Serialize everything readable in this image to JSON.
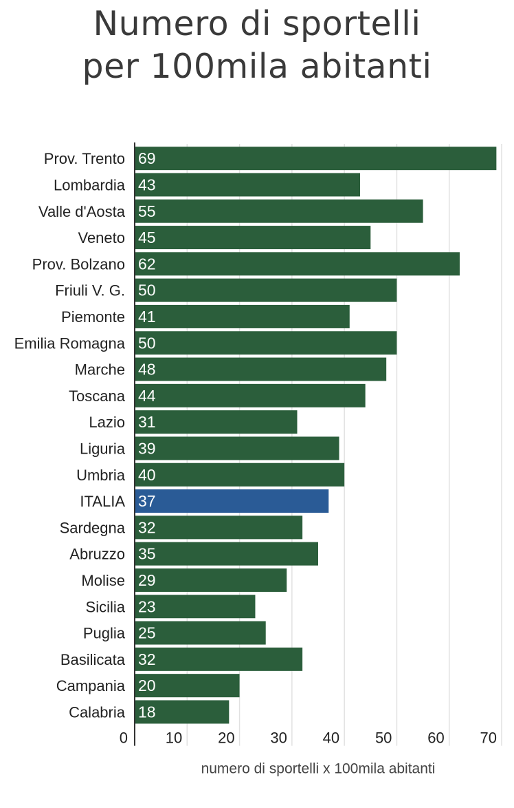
{
  "title_line1": "Numero di sportelli",
  "title_line2": "per 100mila abitanti",
  "chart_data": {
    "type": "bar",
    "orientation": "horizontal",
    "title": "Numero di sportelli per 100mila abitanti",
    "xlabel": "numero di sportelli x 100mila abitanti",
    "ylabel": "",
    "categories": [
      "Prov. Trento",
      "Lombardia",
      "Valle d'Aosta",
      "Veneto",
      "Prov. Bolzano",
      "Friuli V. G.",
      "Piemonte",
      "Emilia Romagna",
      "Marche",
      "Toscana",
      "Lazio",
      "Liguria",
      "Umbria",
      "ITALIA",
      "Sardegna",
      "Abruzzo",
      "Molise",
      "Sicilia",
      "Puglia",
      "Basilicata",
      "Campania",
      "Calabria"
    ],
    "values": [
      69,
      43,
      55,
      45,
      62,
      50,
      41,
      50,
      48,
      44,
      31,
      39,
      40,
      37,
      32,
      35,
      29,
      23,
      25,
      32,
      20,
      18
    ],
    "highlight_category": "ITALIA",
    "xlim": [
      0,
      70
    ],
    "xticks": [
      "0",
      "10",
      "20",
      "30",
      "40",
      "50",
      "60",
      "70"
    ],
    "grid": "vertical",
    "colors": {
      "bar": "#2b5e3b",
      "highlight": "#2a5b96",
      "grid": "#e1e1e1",
      "axis": "#333333"
    }
  }
}
